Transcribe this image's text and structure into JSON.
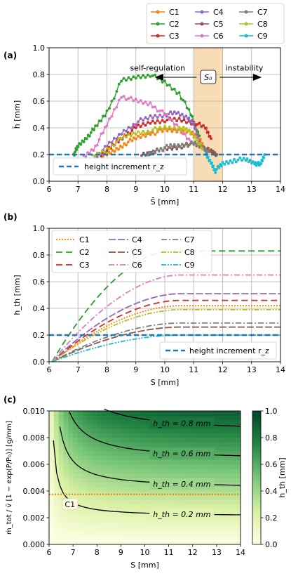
{
  "chart_data": [
    {
      "panel": "(a)",
      "type": "line",
      "xlabel": "S̄ [mm]",
      "ylabel": "h̄ [mm]",
      "xlim": [
        6,
        14
      ],
      "ylim": [
        0,
        1.0
      ],
      "xticks": [
        "6",
        "7",
        "8",
        "9",
        "10",
        "11",
        "12",
        "13",
        "14"
      ],
      "yticks": [
        "0.0",
        "0.2",
        "0.4",
        "0.6",
        "0.8",
        "1.0"
      ],
      "grid": true,
      "legend_placement": "above-right",
      "shaded_band": {
        "from": 11,
        "to": 12,
        "label": "S₀",
        "color": "#f7dcb5"
      },
      "annotations": {
        "left": "self-regulation",
        "right": "instability",
        "arrow_y": 0.8
      },
      "reference_line": {
        "name": "height increment r_z",
        "y": 0.2,
        "color": "#1f77b4",
        "legend_placement": "lower-left"
      },
      "series": [
        {
          "name": "C1",
          "color": "#ff7f0e",
          "points": [
            [
              7.8,
              0.18
            ],
            [
              8.2,
              0.22
            ],
            [
              8.6,
              0.28
            ],
            [
              9.0,
              0.32
            ],
            [
              9.5,
              0.36
            ],
            [
              10.0,
              0.38
            ],
            [
              10.5,
              0.38
            ],
            [
              10.9,
              0.36
            ],
            [
              11.2,
              0.32
            ],
            [
              11.4,
              0.24
            ]
          ]
        },
        {
          "name": "C2",
          "color": "#2ca02c",
          "points": [
            [
              6.85,
              0.2
            ],
            [
              7.0,
              0.26
            ],
            [
              7.3,
              0.33
            ],
            [
              7.6,
              0.4
            ],
            [
              8.0,
              0.52
            ],
            [
              8.5,
              0.75
            ],
            [
              9.0,
              0.78
            ],
            [
              9.5,
              0.8
            ],
            [
              10.0,
              0.74
            ],
            [
              10.5,
              0.66
            ],
            [
              10.9,
              0.5
            ],
            [
              11.2,
              0.34
            ]
          ]
        },
        {
          "name": "C3",
          "color": "#d62728",
          "points": [
            [
              7.8,
              0.2
            ],
            [
              8.2,
              0.26
            ],
            [
              8.6,
              0.34
            ],
            [
              9.0,
              0.4
            ],
            [
              9.5,
              0.44
            ],
            [
              10.0,
              0.46
            ],
            [
              10.5,
              0.46
            ],
            [
              11.0,
              0.44
            ],
            [
              11.4,
              0.4
            ],
            [
              11.6,
              0.32
            ]
          ]
        },
        {
          "name": "C4",
          "color": "#9467bd",
          "points": [
            [
              7.6,
              0.18
            ],
            [
              8.0,
              0.26
            ],
            [
              8.5,
              0.36
            ],
            [
              9.0,
              0.44
            ],
            [
              9.5,
              0.48
            ],
            [
              10.0,
              0.5
            ],
            [
              10.4,
              0.51
            ],
            [
              10.8,
              0.48
            ],
            [
              11.0,
              0.42
            ],
            [
              11.2,
              0.3
            ]
          ]
        },
        {
          "name": "C5",
          "color": "#8c564b",
          "points": [
            [
              9.2,
              0.2
            ],
            [
              9.6,
              0.22
            ],
            [
              10.0,
              0.24
            ],
            [
              10.5,
              0.26
            ],
            [
              11.0,
              0.28
            ],
            [
              11.3,
              0.26
            ],
            [
              11.6,
              0.22
            ],
            [
              11.8,
              0.2
            ]
          ]
        },
        {
          "name": "C6",
          "color": "#e377c2",
          "points": [
            [
              7.2,
              0.18
            ],
            [
              7.6,
              0.26
            ],
            [
              8.0,
              0.42
            ],
            [
              8.5,
              0.64
            ],
            [
              9.0,
              0.6
            ],
            [
              9.5,
              0.58
            ],
            [
              10.0,
              0.5
            ],
            [
              10.5,
              0.4
            ],
            [
              10.9,
              0.3
            ]
          ]
        },
        {
          "name": "C7",
          "color": "#7f7f7f",
          "points": [
            [
              9.4,
              0.2
            ],
            [
              9.8,
              0.24
            ],
            [
              10.2,
              0.26
            ],
            [
              10.6,
              0.27
            ],
            [
              11.0,
              0.28
            ],
            [
              11.3,
              0.26
            ],
            [
              11.5,
              0.22
            ]
          ]
        },
        {
          "name": "C8",
          "color": "#bcbd22",
          "points": [
            [
              7.5,
              0.18
            ],
            [
              8.0,
              0.24
            ],
            [
              8.5,
              0.32
            ],
            [
              9.0,
              0.36
            ],
            [
              9.5,
              0.38
            ],
            [
              10.0,
              0.4
            ],
            [
              10.5,
              0.4
            ],
            [
              10.8,
              0.38
            ],
            [
              11.1,
              0.32
            ],
            [
              11.3,
              0.24
            ]
          ]
        },
        {
          "name": "C9",
          "color": "#17becf",
          "points": [
            [
              11.4,
              0.2
            ],
            [
              11.6,
              0.14
            ],
            [
              11.75,
              0.08
            ],
            [
              12.0,
              0.13
            ],
            [
              12.4,
              0.16
            ],
            [
              12.8,
              0.16
            ],
            [
              13.1,
              0.14
            ],
            [
              13.3,
              0.12
            ],
            [
              13.45,
              0.2
            ]
          ]
        }
      ]
    },
    {
      "panel": "(b)",
      "type": "line",
      "xlabel": "S [mm]",
      "ylabel": "h_th [mm]",
      "xlim": [
        6,
        14
      ],
      "ylim": [
        0,
        1.0
      ],
      "xticks": [
        "6",
        "7",
        "8",
        "9",
        "10",
        "11",
        "12",
        "13",
        "14"
      ],
      "yticks": [
        "0.0",
        "0.2",
        "0.4",
        "0.6",
        "0.8",
        "1.0"
      ],
      "grid": true,
      "legend_placement": "top-left",
      "reference_line": {
        "name": "height increment r_z",
        "y": 0.2,
        "color": "#1f77b4",
        "legend_placement": "right"
      },
      "series": [
        {
          "name": "C1",
          "color": "#ff7f0e",
          "dash": "2 2",
          "plateau_start": 10.5,
          "plateau": 0.42
        },
        {
          "name": "C2",
          "color": "#2ca02c",
          "dash": "9 5",
          "plateau_start": 10.2,
          "plateau": 0.83
        },
        {
          "name": "C3",
          "color": "#d62728",
          "dash": "9 5",
          "plateau_start": 10.5,
          "plateau": 0.46
        },
        {
          "name": "C4",
          "color": "#9467bd",
          "dash": "10 3",
          "plateau_start": 10.5,
          "plateau": 0.51
        },
        {
          "name": "C5",
          "color": "#8c564b",
          "dash": "10 3",
          "plateau_start": 10.5,
          "plateau": 0.26
        },
        {
          "name": "C6",
          "color": "#e377c2",
          "dash": "8 3 2 3",
          "plateau_start": 10.5,
          "plateau": 0.65
        },
        {
          "name": "C7",
          "color": "#7f7f7f",
          "dash": "8 3 2 3",
          "plateau_start": 10.5,
          "plateau": 0.29
        },
        {
          "name": "C8",
          "color": "#bcbd22",
          "dash": "7 2 2 2 2 2",
          "plateau_start": 10.5,
          "plateau": 0.39
        },
        {
          "name": "C9",
          "color": "#17becf",
          "dash": "7 2 2 2 2 2",
          "plateau_start": 10.5,
          "plateau": 0.2
        }
      ]
    },
    {
      "panel": "(c)",
      "type": "heatmap",
      "xlabel": "S [mm]",
      "ylabel": "ṁ_tot / v̄ [1 − exp(P/P₀)] [g/mm]",
      "xlim": [
        6,
        14
      ],
      "ylim": [
        0,
        0.01
      ],
      "xticks": [
        "6",
        "7",
        "8",
        "9",
        "10",
        "11",
        "12",
        "13",
        "14"
      ],
      "yticks": [
        "0.000",
        "0.002",
        "0.004",
        "0.006",
        "0.008",
        "0.010"
      ],
      "colorbar": {
        "label": "h_th [mm]",
        "range": [
          0,
          1.0
        ],
        "ticks": [
          "0.0",
          "0.2",
          "0.4",
          "0.6",
          "0.8",
          "1.0"
        ],
        "colors": [
          "#ffffe5",
          "#004529"
        ]
      },
      "contours": [
        {
          "level": 0.8,
          "label": "h_th = 0.8 mm"
        },
        {
          "level": 0.6,
          "label": "h_th = 0.6 mm"
        },
        {
          "level": 0.4,
          "label": "h_th = 0.4 mm"
        },
        {
          "level": 0.2,
          "label": "h_th = 0.2 mm"
        }
      ],
      "marker_line": {
        "name": "C1",
        "y": 0.00375,
        "color": "#ff7f0e"
      }
    }
  ]
}
